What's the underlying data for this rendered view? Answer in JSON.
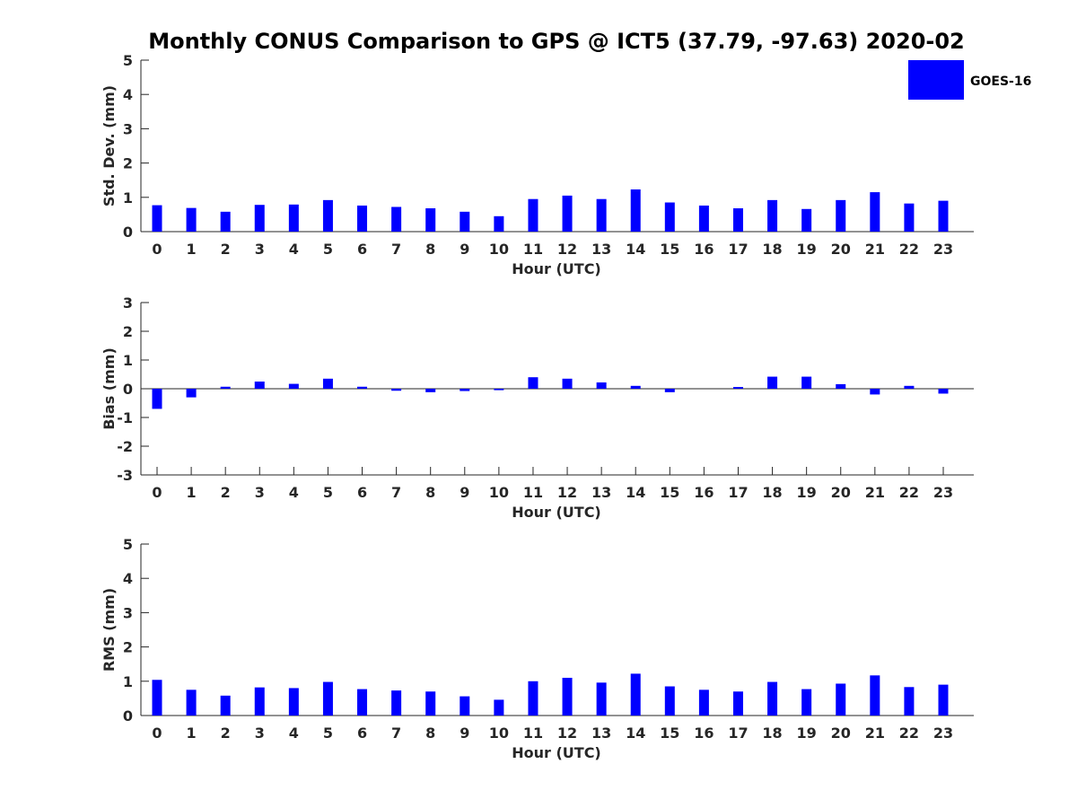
{
  "title": "Monthly CONUS Comparison to GPS @ ICT5 (37.79, -97.63) 2020-02",
  "legend": {
    "label": "GOES-16",
    "color": "#0000ff"
  },
  "chart_data": [
    {
      "type": "bar",
      "ylabel": "Std. Dev. (mm)",
      "xlabel": "Hour (UTC)",
      "ylim": [
        0,
        5
      ],
      "yticks": [
        "0",
        "1",
        "2",
        "3",
        "4",
        "5"
      ],
      "categories": [
        "0",
        "1",
        "2",
        "3",
        "4",
        "5",
        "6",
        "7",
        "8",
        "9",
        "10",
        "11",
        "12",
        "13",
        "14",
        "15",
        "16",
        "17",
        "18",
        "19",
        "20",
        "21",
        "22",
        "23"
      ],
      "series": [
        {
          "name": "GOES-16",
          "color": "#0000ff",
          "values": [
            0.77,
            0.69,
            0.58,
            0.78,
            0.79,
            0.92,
            0.76,
            0.72,
            0.68,
            0.58,
            0.45,
            0.95,
            1.05,
            0.95,
            1.23,
            0.85,
            0.76,
            0.68,
            0.92,
            0.66,
            0.92,
            1.15,
            0.82,
            0.9
          ]
        }
      ]
    },
    {
      "type": "bar",
      "ylabel": "Bias (mm)",
      "xlabel": "Hour (UTC)",
      "ylim": [
        -3,
        3
      ],
      "yticks": [
        "-3",
        "-2",
        "-1",
        "0",
        "1",
        "2",
        "3"
      ],
      "categories": [
        "0",
        "1",
        "2",
        "3",
        "4",
        "5",
        "6",
        "7",
        "8",
        "9",
        "10",
        "11",
        "12",
        "13",
        "14",
        "15",
        "16",
        "17",
        "18",
        "19",
        "20",
        "21",
        "22",
        "23"
      ],
      "series": [
        {
          "name": "GOES-16",
          "color": "#0000ff",
          "values": [
            -0.7,
            -0.3,
            0.07,
            0.25,
            0.17,
            0.35,
            0.07,
            -0.07,
            -0.12,
            -0.08,
            -0.05,
            0.4,
            0.35,
            0.22,
            0.1,
            -0.12,
            0.0,
            0.06,
            0.42,
            0.42,
            0.16,
            -0.2,
            0.1,
            -0.17
          ]
        }
      ]
    },
    {
      "type": "bar",
      "ylabel": "RMS (mm)",
      "xlabel": "Hour (UTC)",
      "ylim": [
        0,
        5
      ],
      "yticks": [
        "0",
        "1",
        "2",
        "3",
        "4",
        "5"
      ],
      "categories": [
        "0",
        "1",
        "2",
        "3",
        "4",
        "5",
        "6",
        "7",
        "8",
        "9",
        "10",
        "11",
        "12",
        "13",
        "14",
        "15",
        "16",
        "17",
        "18",
        "19",
        "20",
        "21",
        "22",
        "23"
      ],
      "series": [
        {
          "name": "GOES-16",
          "color": "#0000ff",
          "values": [
            1.04,
            0.75,
            0.58,
            0.82,
            0.8,
            0.98,
            0.77,
            0.73,
            0.7,
            0.56,
            0.46,
            1.0,
            1.1,
            0.96,
            1.22,
            0.85,
            0.75,
            0.7,
            0.98,
            0.77,
            0.93,
            1.17,
            0.83,
            0.9
          ]
        }
      ]
    }
  ]
}
